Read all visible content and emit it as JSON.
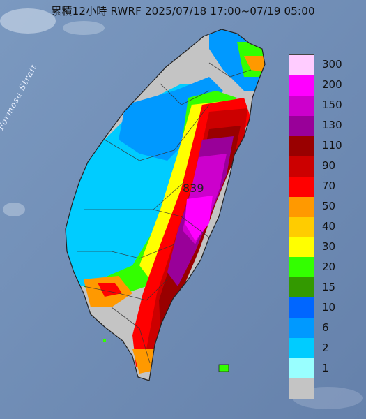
{
  "header": {
    "title": "累積12小時 RWRF 2025/07/18 17:00~07/19 05:00"
  },
  "map": {
    "sea_label": "Formosa Strait",
    "peak_label": "839",
    "land_color": "#b9b9b9"
  },
  "legend": {
    "items": [
      {
        "label": "300",
        "color": "#ffccff"
      },
      {
        "label": "200",
        "color": "#ff00ff"
      },
      {
        "label": "150",
        "color": "#cc00cc"
      },
      {
        "label": "130",
        "color": "#990099"
      },
      {
        "label": "110",
        "color": "#990000"
      },
      {
        "label": "90",
        "color": "#cc0000"
      },
      {
        "label": "70",
        "color": "#ff0000"
      },
      {
        "label": "50",
        "color": "#ff9900"
      },
      {
        "label": "40",
        "color": "#ffcc00"
      },
      {
        "label": "30",
        "color": "#ffff00"
      },
      {
        "label": "20",
        "color": "#33ff00"
      },
      {
        "label": "15",
        "color": "#339900"
      },
      {
        "label": "10",
        "color": "#0066ff"
      },
      {
        "label": "6",
        "color": "#0099ff"
      },
      {
        "label": "2",
        "color": "#00ccff"
      },
      {
        "label": "1",
        "color": "#99ffff"
      },
      {
        "label": "",
        "color": "#c4c4c4"
      }
    ]
  }
}
